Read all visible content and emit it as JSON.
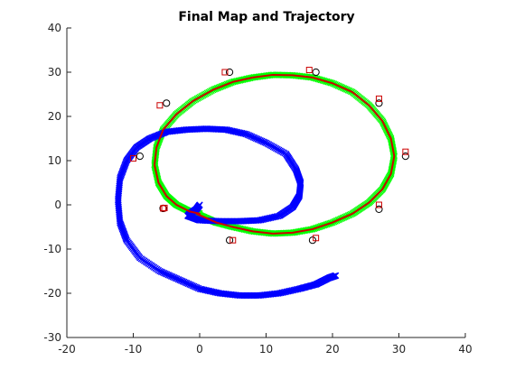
{
  "chart_data": {
    "type": "scatter",
    "title": "Final Map and Trajectory",
    "xlabel": "",
    "ylabel": "",
    "xlim": [
      -20,
      40
    ],
    "ylim": [
      -30,
      40
    ],
    "xticks": [
      -20,
      -10,
      0,
      10,
      20,
      30,
      40
    ],
    "yticks": [
      -30,
      -20,
      -10,
      0,
      10,
      20,
      30,
      40
    ],
    "grid": false,
    "legend": "none",
    "colors": {
      "true_trajectory": "#00ff00",
      "estimated_trajectory": "#cc0000",
      "noisy_trajectory": "#0000ff",
      "landmark_true": "#000000",
      "landmark_estimated": "#cc0000"
    },
    "series": [
      {
        "marker": "x",
        "color": "#00ff00",
        "x": [
          -0.5,
          1,
          2.5,
          5,
          8,
          11,
          14,
          17,
          20,
          23,
          25.5,
          27.5,
          28.8,
          29.3,
          28.8,
          27.5,
          25.5,
          23,
          20,
          17,
          14,
          11,
          8,
          5,
          2,
          -1,
          -3.5,
          -5.5,
          -6.5,
          -6.8,
          -6.2,
          -5,
          -3.5,
          -1.5,
          0,
          -0.5
        ],
        "y": [
          -2,
          -3,
          -4,
          -5,
          -6,
          -6.5,
          -6.3,
          -5.5,
          -4,
          -2,
          0.5,
          3.5,
          7,
          11,
          15,
          19,
          22.5,
          25.5,
          27.5,
          28.8,
          29.3,
          29.4,
          28.8,
          27.8,
          26,
          23.5,
          20.5,
          17,
          13,
          9,
          5,
          2,
          0,
          -1.5,
          -2,
          -2
        ]
      },
      {
        "marker": "line",
        "color": "#cc0000",
        "x": [
          -0.5,
          1,
          2.5,
          5,
          8,
          11,
          14,
          17,
          20,
          23,
          25.5,
          27.5,
          28.8,
          29.3,
          28.8,
          27.5,
          25.5,
          23,
          20,
          17,
          14,
          11,
          8,
          5,
          2,
          -1,
          -3.5,
          -5.5,
          -6.5,
          -6.8,
          -6.2,
          -5,
          -3.5,
          -1.5,
          0,
          -0.5
        ],
        "y": [
          -2,
          -3,
          -4,
          -5,
          -6,
          -6.5,
          -6.3,
          -5.5,
          -4,
          -2,
          0.5,
          3.5,
          7,
          11,
          15,
          19,
          22.5,
          25.5,
          27.5,
          28.8,
          29.3,
          29.4,
          28.8,
          27.8,
          26,
          23.5,
          20.5,
          17,
          13,
          9,
          5,
          2,
          0,
          -1.5,
          -2,
          -2
        ]
      },
      {
        "marker": "x",
        "color": "#0000ff",
        "x": [
          0,
          -0.5,
          -1.5,
          -1.8,
          0,
          3,
          6,
          9,
          12,
          14,
          15,
          15.2,
          14.5,
          13,
          10,
          7,
          4,
          1,
          -2,
          -5,
          -7.5,
          -9.5,
          -11,
          -12,
          -12.3,
          -12,
          -11,
          -9,
          -6,
          -3,
          0,
          3,
          6,
          9,
          12,
          15,
          17.5,
          19.5,
          20.5
        ],
        "y": [
          0,
          -1,
          -2,
          -2.5,
          -3.5,
          -3.7,
          -3.7,
          -3.5,
          -2.5,
          -0.5,
          2,
          5,
          8,
          11.5,
          14,
          16,
          17,
          17.2,
          17,
          16.5,
          15,
          13,
          10,
          6,
          1,
          -4,
          -8,
          -12,
          -15,
          -17,
          -19,
          -20,
          -20.5,
          -20.5,
          -20,
          -19,
          -18,
          -16.5,
          -16
        ]
      },
      {
        "marker": "o",
        "color": "#000000",
        "x": [
          -5.5,
          -9,
          -5,
          4.5,
          17.5,
          27,
          31,
          27,
          17,
          4.5,
          -5.5
        ],
        "y": [
          -0.8,
          11,
          23,
          30,
          30,
          23,
          11,
          -1,
          -8,
          -8,
          -0.8
        ]
      },
      {
        "marker": "s",
        "color": "#cc0000",
        "x": [
          -5.5,
          -10,
          -6,
          3.8,
          16.5,
          27,
          31,
          27,
          17.5,
          5,
          -5.3
        ],
        "y": [
          -0.8,
          10.5,
          22.5,
          30,
          30.5,
          24,
          12,
          0,
          -7.5,
          -8,
          -0.7
        ]
      }
    ]
  }
}
